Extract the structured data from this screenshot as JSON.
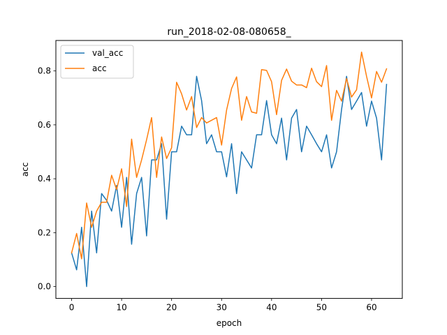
{
  "chart_data": {
    "type": "line",
    "title": "run_2018-02-08-080658_",
    "xlabel": "epoch",
    "ylabel": "acc",
    "xlim": [
      -3.15,
      66.15
    ],
    "ylim": [
      -0.044,
      0.913
    ],
    "xticks": [
      0,
      10,
      20,
      30,
      40,
      50,
      60
    ],
    "yticks": [
      0.0,
      0.2,
      0.4,
      0.6,
      0.8
    ],
    "ytick_labels": [
      "0.0",
      "0.2",
      "0.4",
      "0.6",
      "0.8"
    ],
    "grid": false,
    "legend_position": "upper-left",
    "x": [
      0,
      1,
      2,
      3,
      4,
      5,
      6,
      7,
      8,
      9,
      10,
      11,
      12,
      13,
      14,
      15,
      16,
      17,
      18,
      19,
      20,
      21,
      22,
      23,
      24,
      25,
      26,
      27,
      28,
      29,
      30,
      31,
      32,
      33,
      34,
      35,
      36,
      37,
      38,
      39,
      40,
      41,
      42,
      43,
      44,
      45,
      46,
      47,
      48,
      49,
      50,
      51,
      52,
      53,
      54,
      55,
      56,
      57,
      58,
      59,
      60,
      61,
      62,
      63
    ],
    "series": [
      {
        "name": "val_acc",
        "color": "#1f77b4",
        "values": [
          0.125,
          0.062,
          0.22,
          0.0,
          0.28,
          0.125,
          0.345,
          0.32,
          0.28,
          0.375,
          0.22,
          0.405,
          0.157,
          0.345,
          0.405,
          0.188,
          0.47,
          0.47,
          0.53,
          0.25,
          0.5,
          0.5,
          0.595,
          0.563,
          0.563,
          0.78,
          0.69,
          0.53,
          0.563,
          0.5,
          0.5,
          0.407,
          0.53,
          0.345,
          0.5,
          0.47,
          0.44,
          0.563,
          0.563,
          0.69,
          0.563,
          0.53,
          0.625,
          0.47,
          0.625,
          0.657,
          0.5,
          0.595,
          0.563,
          0.53,
          0.5,
          0.563,
          0.44,
          0.5,
          0.657,
          0.78,
          0.657,
          0.688,
          0.72,
          0.595,
          0.688,
          0.625,
          0.47,
          0.75
        ]
      },
      {
        "name": "acc",
        "color": "#ff7f0e",
        "values": [
          0.125,
          0.197,
          0.103,
          0.31,
          0.22,
          0.28,
          0.313,
          0.313,
          0.413,
          0.36,
          0.437,
          0.297,
          0.547,
          0.405,
          0.47,
          0.545,
          0.627,
          0.405,
          0.555,
          0.475,
          0.515,
          0.758,
          0.715,
          0.655,
          0.705,
          0.59,
          0.627,
          0.607,
          0.617,
          0.627,
          0.525,
          0.655,
          0.735,
          0.778,
          0.617,
          0.705,
          0.648,
          0.643,
          0.805,
          0.802,
          0.76,
          0.638,
          0.765,
          0.807,
          0.762,
          0.748,
          0.748,
          0.738,
          0.81,
          0.76,
          0.742,
          0.82,
          0.617,
          0.728,
          0.688,
          0.772,
          0.703,
          0.73,
          0.87,
          0.78,
          0.7,
          0.798,
          0.758,
          0.808
        ]
      }
    ]
  }
}
